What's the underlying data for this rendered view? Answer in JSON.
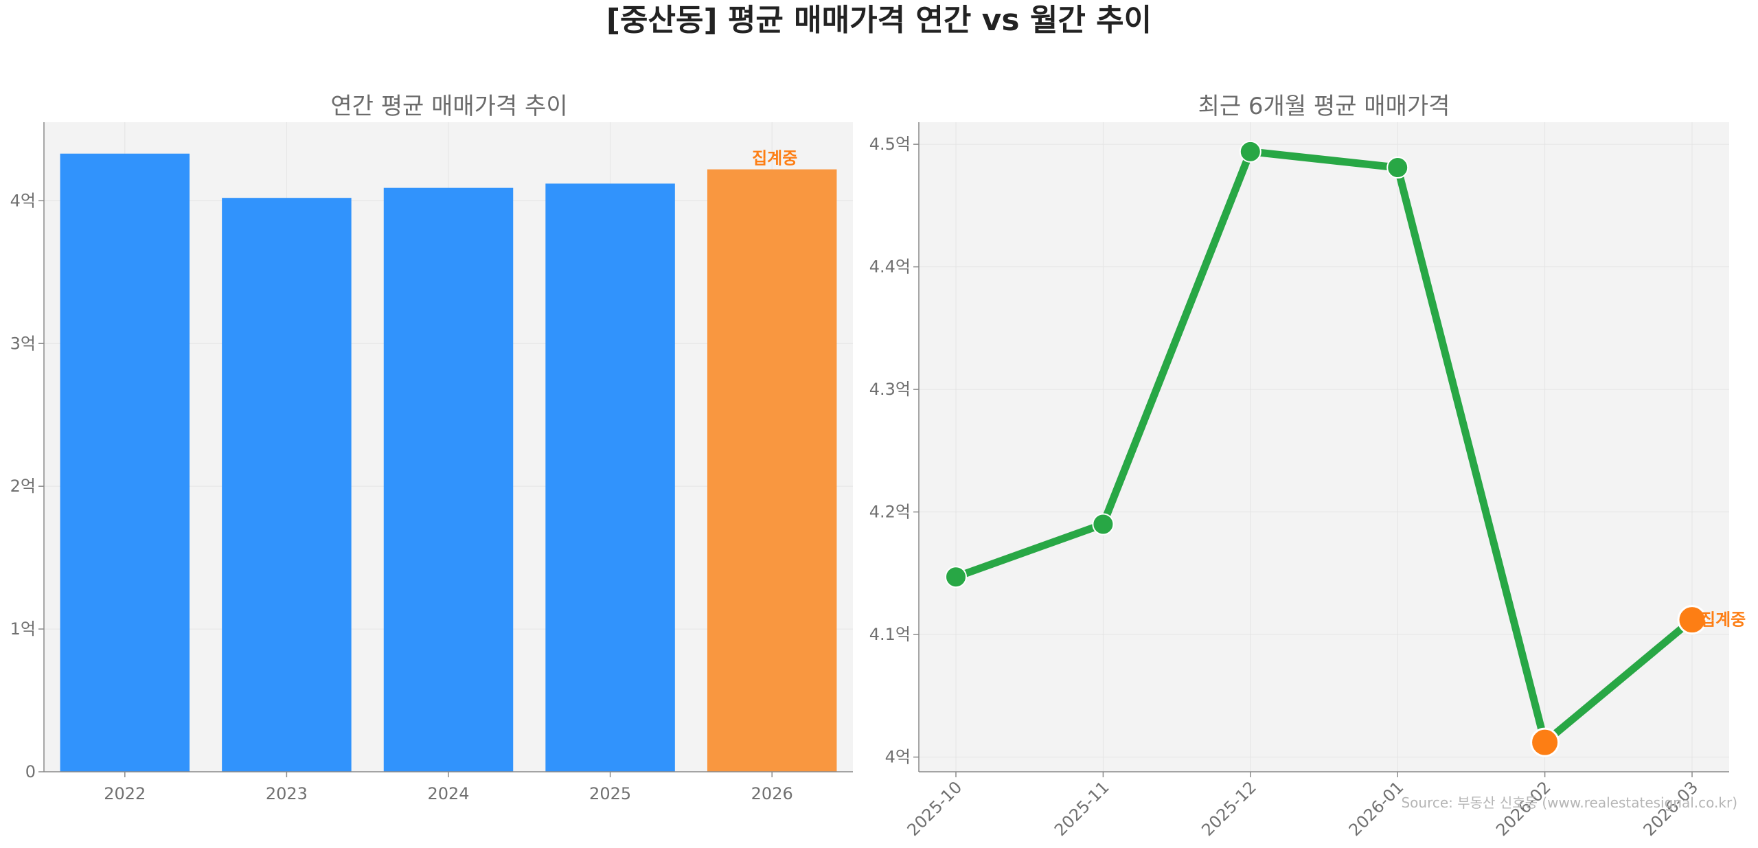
{
  "title": "[중산동] 평균 매매가격 연간 vs 월간 추이",
  "source": "Source: 부동산 신호등 (www.realestatesignal.co.kr)",
  "colors": {
    "bar": "#3193fc",
    "bar_highlight": "#f99740",
    "line": "#28a745",
    "marker_highlight": "#fd7e14",
    "note": "#fd7e14",
    "plot_bg": "#f3f3f3",
    "grid": "#e4e4e4",
    "axis": "#8a8a8a"
  },
  "chart_data": [
    {
      "type": "bar",
      "title": "연간 평균 매매가격 추이",
      "categories": [
        "2022",
        "2023",
        "2024",
        "2025",
        "2026"
      ],
      "values": [
        4.33,
        4.02,
        4.09,
        4.12,
        4.22
      ],
      "unit": "억",
      "ylim": [
        0,
        4.55
      ],
      "yticks": [
        0,
        1,
        2,
        3,
        4
      ],
      "ytick_labels": [
        "0",
        "1억",
        "2억",
        "3억",
        "4억"
      ],
      "highlight_index": 4,
      "annotation": {
        "index": 4,
        "text": "집계중"
      },
      "grid": true,
      "legend": "none"
    },
    {
      "type": "line",
      "title": "최근 6개월 평균 매매가격",
      "x": [
        "2025-10",
        "2025-11",
        "2025-12",
        "2026-01",
        "2026-02",
        "2026-03"
      ],
      "values": [
        4.147,
        4.19,
        4.494,
        4.481,
        4.012,
        4.112
      ],
      "unit": "억",
      "ylim": [
        3.988,
        4.518
      ],
      "yticks": [
        4.0,
        4.1,
        4.2,
        4.3,
        4.4,
        4.5
      ],
      "ytick_labels": [
        "4억",
        "4.1억",
        "4.2억",
        "4.3억",
        "4.4억",
        "4.5억"
      ],
      "highlight_indices": [
        4,
        5
      ],
      "annotation": {
        "index": 5,
        "text": "집계중"
      },
      "grid": true,
      "legend": "none"
    }
  ]
}
